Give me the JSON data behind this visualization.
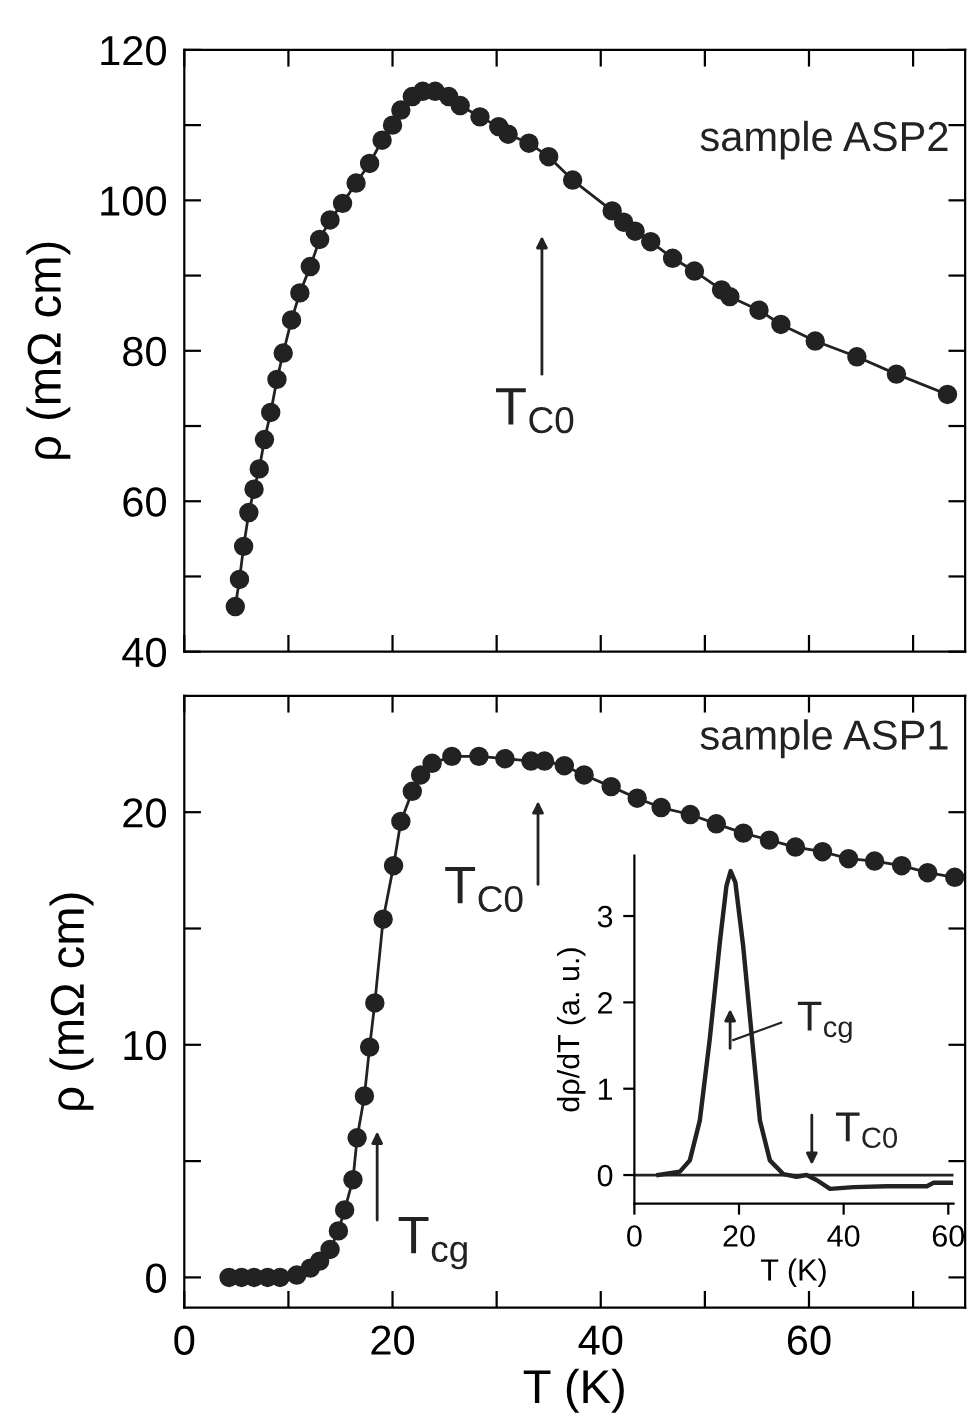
{
  "chart_data": [
    {
      "type": "line",
      "ylabel": "ρ (mΩ cm)",
      "xlim": [
        0,
        75
      ],
      "ylim": [
        40,
        120
      ],
      "marker": "circle",
      "tick_labels": "y",
      "xticks": [
        {
          "value": 0,
          "label": null
        },
        {
          "value": 10,
          "label": null
        },
        {
          "value": 20,
          "label": null
        },
        {
          "value": 30,
          "label": null
        },
        {
          "value": 40,
          "label": null
        },
        {
          "value": 50,
          "label": null
        },
        {
          "value": 60,
          "label": null
        },
        {
          "value": 70,
          "label": null
        }
      ],
      "yticks": [
        40,
        {
          "value": 50,
          "label": null
        },
        60,
        {
          "value": 70,
          "label": null
        },
        80,
        {
          "value": 90,
          "label": null
        },
        100,
        {
          "value": 110,
          "label": null
        },
        120
      ],
      "annotations": [
        "T$_{C0}$"
      ],
      "series": [
        {
          "name": "sample ASP2",
          "color": "#222222",
          "x": [
            4.9,
            5.3,
            5.7,
            6.2,
            6.7,
            7.2,
            7.7,
            8.3,
            8.9,
            9.5,
            10.3,
            11.1,
            12.1,
            13.0,
            14.0,
            15.2,
            16.5,
            17.8,
            19.0,
            20.0,
            20.8,
            21.9,
            22.9,
            24.1,
            25.4,
            26.5,
            28.4,
            30.2,
            31.1,
            33.1,
            35.0,
            37.3,
            41.1,
            42.2,
            43.3,
            44.8,
            46.9,
            49.0,
            51.6,
            52.4,
            55.2,
            57.3,
            60.6,
            64.6,
            68.4,
            73.3
          ],
          "values": [
            46.0,
            49.6,
            54.0,
            58.5,
            61.6,
            64.3,
            68.2,
            71.8,
            76.2,
            79.7,
            84.1,
            87.7,
            91.2,
            94.8,
            97.4,
            99.6,
            102.3,
            104.9,
            108.0,
            110.0,
            112.0,
            113.8,
            114.5,
            114.5,
            113.8,
            112.6,
            111.1,
            109.8,
            108.8,
            107.6,
            105.8,
            102.7,
            98.6,
            97.1,
            95.9,
            94.5,
            92.3,
            90.6,
            88.1,
            87.2,
            85.4,
            83.5,
            81.3,
            79.2,
            76.9,
            74.2
          ]
        }
      ]
    },
    {
      "type": "line",
      "ylabel": "ρ (mΩ cm)",
      "xlabel": "T (K)",
      "xlim": [
        0,
        75
      ],
      "ylim": [
        -1.3,
        25
      ],
      "marker": "circle",
      "xticks": [
        0,
        {
          "value": 10,
          "label": null
        },
        20,
        {
          "value": 30,
          "label": null
        },
        40,
        {
          "value": 50,
          "label": null
        },
        60,
        {
          "value": 70,
          "label": null
        }
      ],
      "yticks": [
        0,
        {
          "value": 5,
          "label": null
        },
        10,
        {
          "value": 15,
          "label": null
        },
        20
      ],
      "annotations": [
        "T$_{C0}$",
        "T$_{cg}$"
      ],
      "series": [
        {
          "name": "sample ASP1",
          "color": "#222222",
          "x": [
            4.3,
            5.5,
            6.7,
            8.0,
            9.2,
            10.8,
            12.1,
            13.0,
            14.0,
            14.8,
            15.4,
            16.2,
            16.6,
            17.3,
            17.8,
            18.3,
            19.1,
            20.1,
            20.8,
            21.9,
            22.7,
            23.8,
            25.7,
            28.3,
            30.8,
            33.3,
            34.6,
            36.5,
            38.4,
            41.0,
            43.5,
            45.8,
            48.6,
            51.1,
            53.7,
            56.2,
            58.7,
            61.3,
            63.8,
            66.3,
            68.9,
            71.4,
            74.0
          ],
          "values": [
            0,
            0,
            0,
            0,
            0,
            0.1,
            0.4,
            0.7,
            1.2,
            2.0,
            2.9,
            4.2,
            6.0,
            7.8,
            9.9,
            11.8,
            15.4,
            17.7,
            19.6,
            20.9,
            21.6,
            22.1,
            22.4,
            22.4,
            22.3,
            22.2,
            22.2,
            22.0,
            21.6,
            21.1,
            20.6,
            20.2,
            19.9,
            19.5,
            19.1,
            18.8,
            18.5,
            18.3,
            18.0,
            17.9,
            17.7,
            17.4,
            17.2
          ]
        }
      ]
    },
    {
      "type": "line",
      "ylabel": "dρ/dT (a. u.)",
      "xlabel": "T (K)",
      "xlim": [
        0,
        61
      ],
      "ylim": [
        -0.33,
        3.7
      ],
      "xticks": [
        0,
        20,
        40,
        60
      ],
      "yticks": [
        0,
        1,
        2,
        3
      ],
      "ref_lines": [
        {
          "axis": "y",
          "value": 0,
          "color": "#222222"
        }
      ],
      "annotations": [
        "T$_{cg}$",
        "T$_{C0}$"
      ],
      "series": [
        {
          "color": "#222222",
          "x": [
            4.6,
            8.7,
            10.6,
            12.5,
            14.4,
            16.4,
            17.6,
            18.4,
            19.3,
            20.8,
            22.5,
            24.0,
            25.9,
            28.5,
            31.0,
            32.9,
            34.9,
            37.4,
            41.9,
            48.3,
            55.9,
            57.2,
            60.5
          ],
          "values": [
            0,
            0.04,
            0.17,
            0.63,
            1.57,
            2.73,
            3.35,
            3.52,
            3.39,
            2.65,
            1.57,
            0.63,
            0.17,
            0.01,
            -0.02,
            0,
            -0.06,
            -0.16,
            -0.14,
            -0.13,
            -0.13,
            -0.09,
            -0.09
          ]
        }
      ]
    }
  ]
}
